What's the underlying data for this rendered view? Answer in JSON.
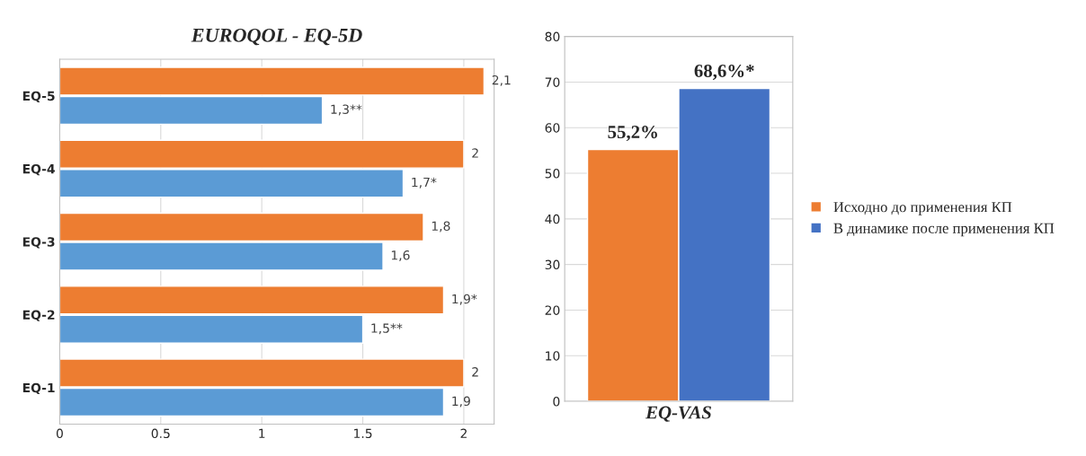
{
  "chart_data": [
    {
      "type": "bar",
      "title": "EUROQOL - EQ-5D",
      "orientation": "horizontal",
      "categories": [
        "EQ-5",
        "EQ-4",
        "EQ-3",
        "EQ-2",
        "EQ-1"
      ],
      "series": [
        {
          "color": "#ed7d31",
          "values": [
            2.1,
            2,
            1.8,
            1.9,
            2
          ],
          "value_labels": [
            "2,1",
            "2",
            "1,8",
            "1,9*",
            "2"
          ]
        },
        {
          "color": "#5b9bd5",
          "values": [
            1.3,
            1.7,
            1.6,
            1.5,
            1.9
          ],
          "value_labels": [
            "1,3**",
            "1,7*",
            "1,6",
            "1,5**",
            "1,9"
          ]
        }
      ],
      "xlim": [
        0,
        2.15
      ],
      "xticks": [
        0,
        0.5,
        1,
        1.5,
        2
      ],
      "grid": "x",
      "legend": false
    },
    {
      "type": "bar",
      "categories": [
        "EQ-VAS"
      ],
      "series": [
        {
          "name": "Исходно до применения КП",
          "color": "#ed7d31",
          "values": [
            55.2
          ],
          "value_labels": [
            "55,2%"
          ]
        },
        {
          "name": "В динамике после применения КП",
          "color": "#4472c4",
          "values": [
            68.6
          ],
          "value_labels": [
            "68,6%*"
          ]
        }
      ],
      "ylim": [
        0,
        80
      ],
      "yticks": [
        0,
        10,
        20,
        30,
        40,
        50,
        60,
        70,
        80
      ],
      "grid": "y",
      "legend": "right"
    }
  ]
}
